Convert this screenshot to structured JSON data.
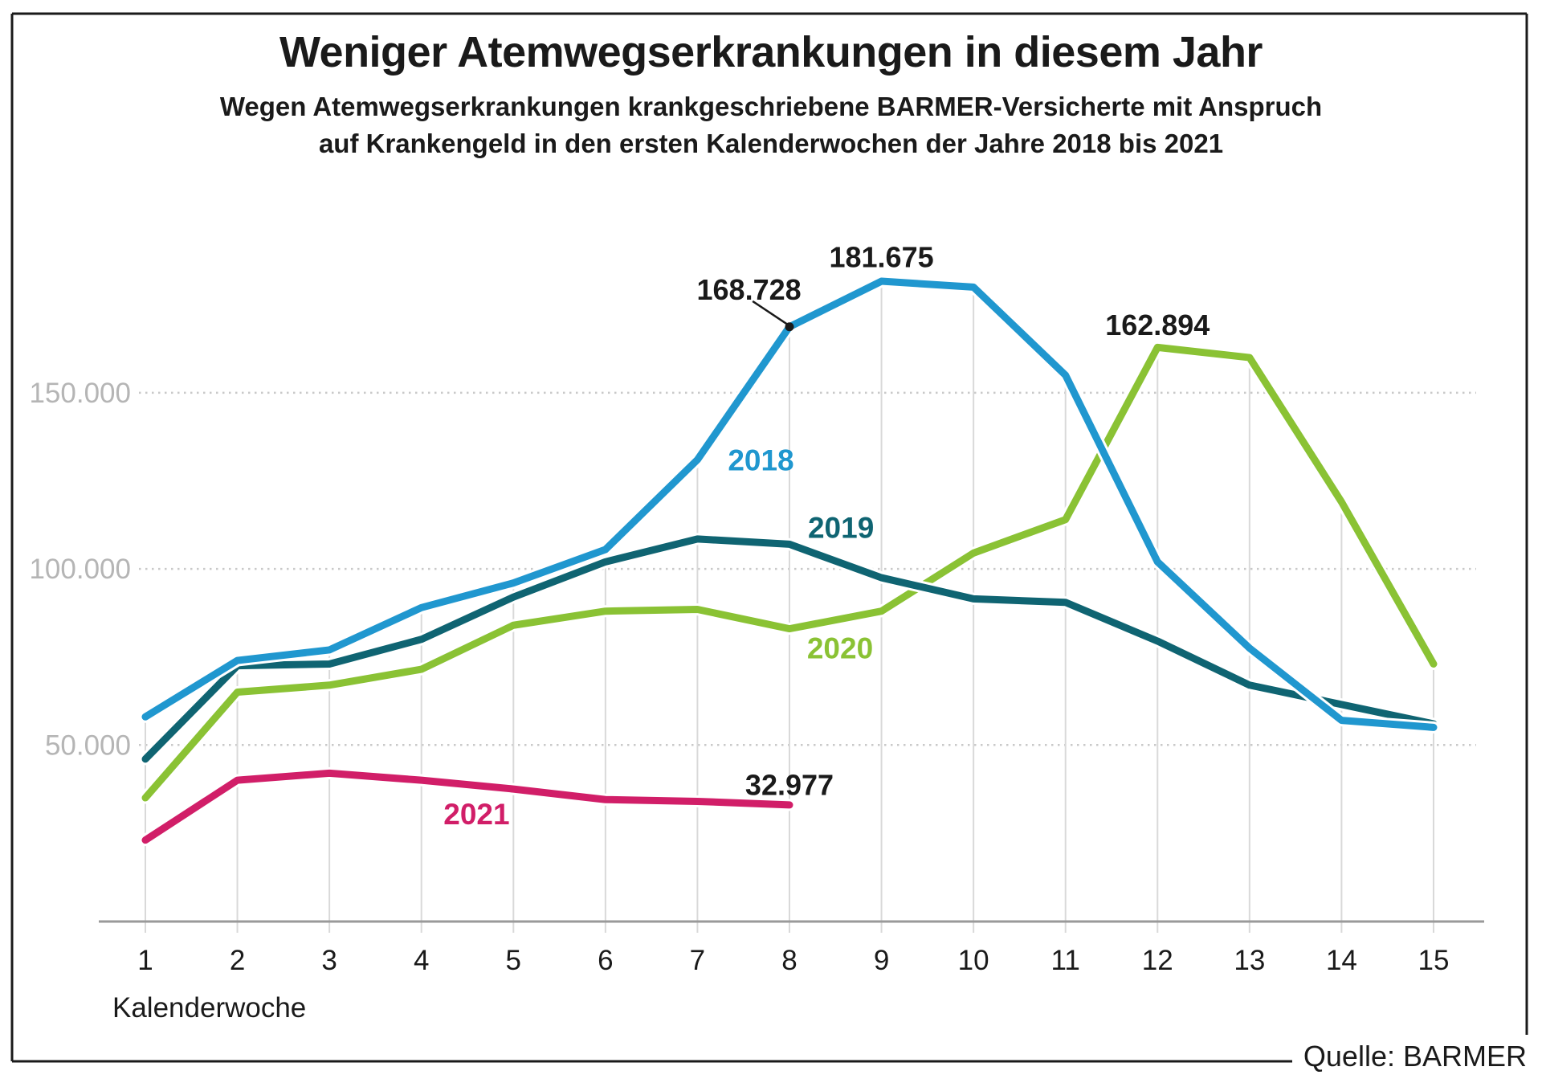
{
  "header": {
    "title": "Weniger Atemwegserkrankungen in diesem Jahr",
    "subtitle_line1": "Wegen Atemwegserkrankungen krankgeschriebene BARMER-Versicherte mit Anspruch",
    "subtitle_line2": "auf Krankengeld in den ersten Kalenderwochen der Jahre 2018 bis 2021"
  },
  "frame": {
    "source_label": "Quelle: BARMER"
  },
  "colors": {
    "blue_2018": "#2097cf",
    "teal_2019": "#0f6472",
    "green_2020": "#8ac234",
    "pink_2021": "#d11e68",
    "grid_stem": "#d9d9d9",
    "grid_dotted": "#c9c9c9",
    "axis": "#9a9a9a",
    "y_tick_text": "#b5b5b5",
    "text_dark": "#1a1a1a"
  },
  "chart_data": {
    "type": "line",
    "title": "Weniger Atemwegserkrankungen in diesem Jahr",
    "xlabel": "Kalenderwoche",
    "ylabel": "",
    "x": [
      1,
      2,
      3,
      4,
      5,
      6,
      7,
      8,
      9,
      10,
      11,
      12,
      13,
      14,
      15
    ],
    "x_tick_labels": [
      "1",
      "2",
      "3",
      "4",
      "5",
      "6",
      "7",
      "8",
      "9",
      "10",
      "11",
      "12",
      "13",
      "14",
      "15"
    ],
    "y_ticks": [
      {
        "value": 50000,
        "label": "50.000"
      },
      {
        "value": 100000,
        "label": "100.000"
      },
      {
        "value": 150000,
        "label": "150.000"
      }
    ],
    "ylim": [
      0,
      197000
    ],
    "grid": {
      "horizontal": "dotted",
      "vertical": "stems-up-to-max-series"
    },
    "legend_position": "inline-labels-on-lines",
    "series": [
      {
        "name": "2021",
        "color": "#d11e68",
        "values": [
          23000,
          40000,
          42000,
          40000,
          37500,
          34500,
          34000,
          32977
        ],
        "label": {
          "week": 4.6,
          "value": 30500
        }
      },
      {
        "name": "2020",
        "color": "#8ac234",
        "values": [
          35000,
          65000,
          67000,
          71500,
          84000,
          88000,
          88500,
          83000,
          88000,
          104500,
          114000,
          162894,
          160000,
          119000,
          73000
        ],
        "label": {
          "week": 8.55,
          "value": 77500
        }
      },
      {
        "name": "2019",
        "color": "#0f6472",
        "values": [
          46000,
          72500,
          73000,
          80000,
          92000,
          102000,
          108500,
          107000,
          97500,
          91500,
          90500,
          79500,
          67000,
          61500,
          56000
        ],
        "label": {
          "week": 8.56,
          "value": 111800
        }
      },
      {
        "name": "2018",
        "color": "#2097cf",
        "values": [
          58000,
          74000,
          77000,
          89000,
          96000,
          105500,
          131000,
          168728,
          181675,
          180000,
          155000,
          102000,
          77500,
          57000,
          55000
        ],
        "label": {
          "week": 7.69,
          "value": 130900
        }
      }
    ],
    "annotations": [
      {
        "text": "168.728",
        "week": 8,
        "value": 168728,
        "label_week": 7.56,
        "label_value": 179400,
        "connector": {
          "from_week": 7.6,
          "from_value": 176000,
          "to_week": 7.99,
          "to_value": 169200
        },
        "dot": true
      },
      {
        "text": "181.675",
        "week": 9,
        "value": 181675,
        "label_week": 9.0,
        "label_value": 188600
      },
      {
        "text": "162.894",
        "week": 12,
        "value": 162894,
        "label_week": 12.0,
        "label_value": 169400
      },
      {
        "text": "32.977",
        "week": 8,
        "value": 32977,
        "label_week": 8.0,
        "label_value": 38800
      }
    ]
  }
}
